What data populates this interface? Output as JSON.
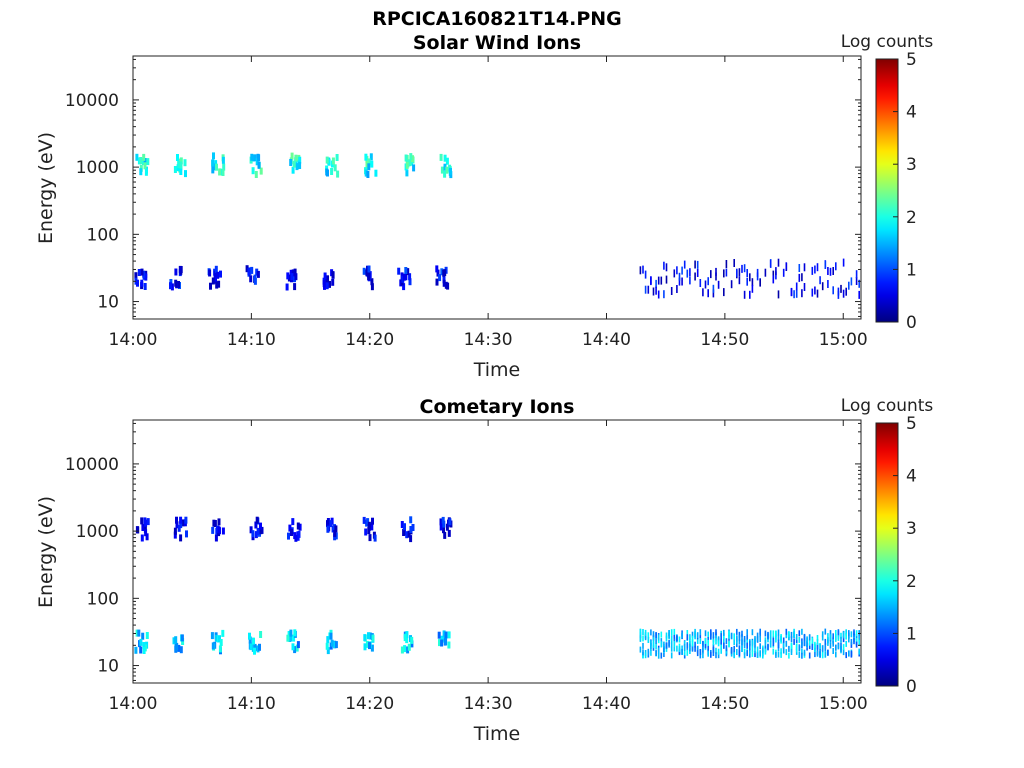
{
  "figure_title": "RPCICA160821T14.PNG",
  "colormap": "jet",
  "chart_data": [
    {
      "type": "heatmap",
      "title": "Solar Wind Ions",
      "xlabel": "Time",
      "ylabel": "Energy (eV)",
      "x_ticks": [
        "14:00",
        "14:10",
        "14:20",
        "14:30",
        "14:40",
        "14:50",
        "15:00"
      ],
      "y_ticks": [
        "10",
        "100",
        "1000",
        "10000"
      ],
      "y_scale": "log",
      "ylim": [
        5.5,
        45000
      ],
      "xlim": [
        "14:00",
        "15:01.5"
      ],
      "colorbar": {
        "label": "Log counts",
        "ticks": [
          "0",
          "1",
          "2",
          "3",
          "4",
          "5"
        ],
        "range": [
          0,
          5
        ]
      },
      "features": [
        {
          "kind": "clusters",
          "description_values": "repeated bursts near 1000 eV",
          "times_min": [
            0.7,
            3.9,
            7.1,
            10.3,
            13.5,
            16.7,
            19.9,
            23.1,
            26.3
          ],
          "energy_eV": 1050,
          "log_counts": 1.9
        },
        {
          "kind": "clusters",
          "times_min": [
            0.5,
            3.5,
            6.8,
            10.0,
            13.2,
            16.4,
            19.6,
            22.8,
            26.0
          ],
          "energy_eV": 22,
          "log_counts": 0.6
        },
        {
          "kind": "band",
          "time_range_min": [
            42.8,
            61.5
          ],
          "energy_range_eV": [
            13,
            40
          ],
          "log_counts": 0.4
        }
      ]
    },
    {
      "type": "heatmap",
      "title": "Cometary Ions",
      "xlabel": "Time",
      "ylabel": "Energy (eV)",
      "x_ticks": [
        "14:00",
        "14:10",
        "14:20",
        "14:30",
        "14:40",
        "14:50",
        "15:00"
      ],
      "y_ticks": [
        "10",
        "100",
        "1000",
        "10000"
      ],
      "y_scale": "log",
      "ylim": [
        5.5,
        45000
      ],
      "xlim": [
        "14:00",
        "15:01.5"
      ],
      "colorbar": {
        "label": "Log counts",
        "ticks": [
          "0",
          "1",
          "2",
          "3",
          "4",
          "5"
        ],
        "range": [
          0,
          5
        ]
      },
      "features": [
        {
          "kind": "clusters",
          "times_min": [
            0.7,
            3.9,
            7.1,
            10.3,
            13.5,
            16.7,
            19.9,
            23.1,
            26.3
          ],
          "energy_eV": 1050,
          "log_counts": 0.5
        },
        {
          "kind": "clusters",
          "times_min": [
            0.6,
            3.8,
            7.0,
            10.2,
            13.4,
            16.6,
            19.8,
            23.0,
            26.2
          ],
          "energy_eV": 22,
          "log_counts": 1.6
        },
        {
          "kind": "band",
          "time_range_min": [
            42.8,
            61.5
          ],
          "energy_range_eV": [
            14,
            32
          ],
          "log_counts": 1.3
        }
      ]
    }
  ]
}
